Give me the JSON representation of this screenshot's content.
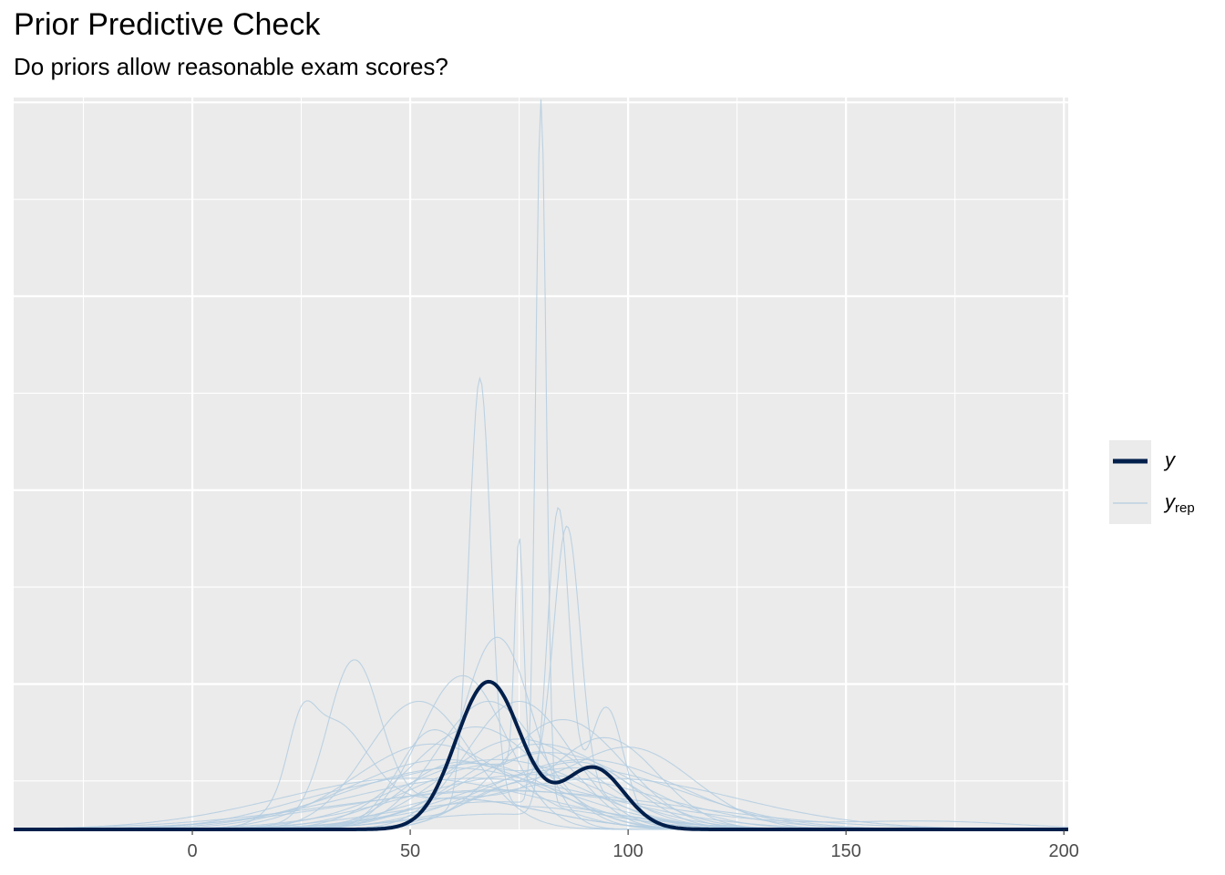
{
  "title": "Prior Predictive Check",
  "subtitle": "Do priors allow reasonable exam scores?",
  "colors": {
    "panel": "#ebebeb",
    "grid": "#ffffff",
    "y": "#011f4b",
    "yrep": "#b3cde0"
  },
  "legend": {
    "items": [
      {
        "key": "y",
        "label": "y",
        "subscript": ""
      },
      {
        "key": "yrep",
        "label": "y",
        "subscript": "rep"
      }
    ]
  },
  "chart_data": {
    "type": "line",
    "title": "Prior Predictive Check",
    "subtitle": "Do priors allow reasonable exam scores?",
    "xlabel": "",
    "ylabel": "",
    "xlim": [
      -41,
      201
    ],
    "ylim": [
      0,
      1.0
    ],
    "x_ticks": [
      0,
      50,
      100,
      150,
      200
    ],
    "grid": true,
    "legend_position": "right",
    "y": {
      "components": [
        {
          "mu": 68,
          "sd": 7.5,
          "w": 0.72
        },
        {
          "mu": 92,
          "sd": 7.0,
          "w": 0.28
        }
      ]
    },
    "yrep": [
      {
        "components": [
          {
            "mu": 80,
            "sd": 1.2,
            "w": 0.55
          },
          {
            "mu": 70,
            "sd": 25,
            "w": 0.45
          }
        ]
      },
      {
        "components": [
          {
            "mu": 66,
            "sd": 2.5,
            "w": 0.7
          },
          {
            "mu": 75,
            "sd": 20,
            "w": 0.3
          }
        ]
      },
      {
        "components": [
          {
            "mu": 86,
            "sd": 3,
            "w": 0.5
          },
          {
            "mu": 80,
            "sd": 15,
            "w": 0.5
          }
        ]
      },
      {
        "components": [
          {
            "mu": 84,
            "sd": 2.5,
            "w": 0.5
          },
          {
            "mu": 95,
            "sd": 4,
            "w": 0.3
          },
          {
            "mu": 70,
            "sd": 20,
            "w": 0.2
          }
        ]
      },
      {
        "components": [
          {
            "mu": 75,
            "sd": 1.0,
            "w": 0.15
          },
          {
            "mu": 70,
            "sd": 20,
            "w": 0.85
          }
        ]
      },
      {
        "components": [
          {
            "mu": 37,
            "sd": 6,
            "w": 0.6
          },
          {
            "mu": 60,
            "sd": 20,
            "w": 0.4
          }
        ]
      },
      {
        "components": [
          {
            "mu": 32,
            "sd": 8,
            "w": 0.5
          },
          {
            "mu": 25,
            "sd": 3,
            "w": 0.1
          },
          {
            "mu": 60,
            "sd": 20,
            "w": 0.4
          }
        ]
      },
      {
        "components": [
          {
            "mu": 70,
            "sd": 8,
            "w": 1.0
          }
        ]
      },
      {
        "components": [
          {
            "mu": 55,
            "sd": 8,
            "w": 0.5
          },
          {
            "mu": 80,
            "sd": 10,
            "w": 0.5
          }
        ]
      },
      {
        "components": [
          {
            "mu": 95,
            "sd": 12,
            "w": 0.7
          },
          {
            "mu": 60,
            "sd": 15,
            "w": 0.3
          }
        ]
      },
      {
        "components": [
          {
            "mu": 100,
            "sd": 15,
            "w": 0.8
          },
          {
            "mu": 70,
            "sd": 10,
            "w": 0.2
          }
        ]
      },
      {
        "components": [
          {
            "mu": 62,
            "sd": 10,
            "w": 1.0
          }
        ]
      },
      {
        "components": [
          {
            "mu": 75,
            "sd": 12,
            "w": 1.0
          }
        ]
      },
      {
        "components": [
          {
            "mu": 80,
            "sd": 18,
            "w": 1.0
          }
        ]
      },
      {
        "components": [
          {
            "mu": 60,
            "sd": 25,
            "w": 1.0
          }
        ]
      },
      {
        "components": [
          {
            "mu": 70,
            "sd": 35,
            "w": 0.9
          },
          {
            "mu": 170,
            "sd": 20,
            "w": 0.1
          }
        ]
      },
      {
        "components": [
          {
            "mu": 50,
            "sd": 30,
            "w": 1.0
          }
        ]
      },
      {
        "components": [
          {
            "mu": 90,
            "sd": 22,
            "w": 1.0
          }
        ]
      },
      {
        "components": [
          {
            "mu": 65,
            "sd": 15,
            "w": 1.0
          }
        ]
      },
      {
        "components": [
          {
            "mu": 85,
            "sd": 14,
            "w": 1.0
          }
        ]
      },
      {
        "components": [
          {
            "mu": 55,
            "sd": 18,
            "w": 1.0
          }
        ]
      },
      {
        "components": [
          {
            "mu": 78,
            "sd": 28,
            "w": 1.0
          }
        ]
      },
      {
        "components": [
          {
            "mu": 95,
            "sd": 30,
            "w": 1.0
          }
        ]
      },
      {
        "components": [
          {
            "mu": 40,
            "sd": 20,
            "w": 0.5
          },
          {
            "mu": 70,
            "sd": 15,
            "w": 0.5
          }
        ]
      },
      {
        "components": [
          {
            "mu": 68,
            "sd": 12,
            "w": 1.0
          }
        ]
      },
      {
        "components": [
          {
            "mu": 72,
            "sd": 40,
            "w": 1.0
          }
        ]
      },
      {
        "components": [
          {
            "mu": 60,
            "sd": 12,
            "w": 0.5
          },
          {
            "mu": 90,
            "sd": 12,
            "w": 0.5
          }
        ]
      },
      {
        "components": [
          {
            "mu": 82,
            "sd": 20,
            "w": 1.0
          }
        ]
      },
      {
        "components": [
          {
            "mu": 58,
            "sd": 22,
            "w": 1.0
          }
        ]
      },
      {
        "components": [
          {
            "mu": 75,
            "sd": 17,
            "w": 1.0
          }
        ]
      },
      {
        "components": [
          {
            "mu": 88,
            "sd": 25,
            "w": 1.0
          }
        ]
      },
      {
        "components": [
          {
            "mu": 65,
            "sd": 30,
            "w": 1.0
          }
        ]
      },
      {
        "components": [
          {
            "mu": 70,
            "sd": 22,
            "w": 1.0
          }
        ]
      },
      {
        "components": [
          {
            "mu": 52,
            "sd": 12,
            "w": 1.0
          }
        ]
      }
    ]
  }
}
